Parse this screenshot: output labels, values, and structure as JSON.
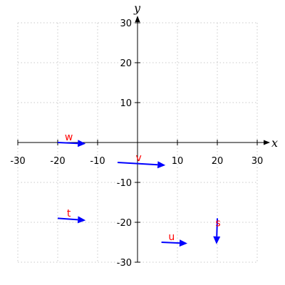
{
  "chart_data": {
    "type": "vector-field",
    "title": "",
    "xlabel": "x",
    "ylabel": "y",
    "xlim": [
      -30,
      30
    ],
    "ylim": [
      -30,
      30
    ],
    "x_ticks": [
      -30,
      -20,
      -10,
      10,
      20,
      30
    ],
    "y_ticks": [
      -30,
      -20,
      -10,
      10,
      20,
      30
    ],
    "x_tick_labels": [
      "-30",
      "-20",
      "-10",
      "10",
      "20",
      "30"
    ],
    "y_tick_labels": [
      "-30",
      "-20",
      "-10",
      "10",
      "20",
      "30"
    ],
    "grid": true,
    "vector_color": "#0000ff",
    "label_color": "#ff0000",
    "vectors": [
      {
        "name": "w",
        "start": [
          -20,
          0
        ],
        "end": [
          -13,
          -0.3
        ]
      },
      {
        "name": "v",
        "start": [
          -5,
          -5
        ],
        "end": [
          7,
          -5.7
        ]
      },
      {
        "name": "t",
        "start": [
          -20,
          -19
        ],
        "end": [
          -13,
          -19.5
        ]
      },
      {
        "name": "u",
        "start": [
          6,
          -25
        ],
        "end": [
          12.5,
          -25.3
        ]
      },
      {
        "name": "s",
        "start": [
          20,
          -19
        ],
        "end": [
          19.8,
          -25.5
        ]
      }
    ]
  }
}
